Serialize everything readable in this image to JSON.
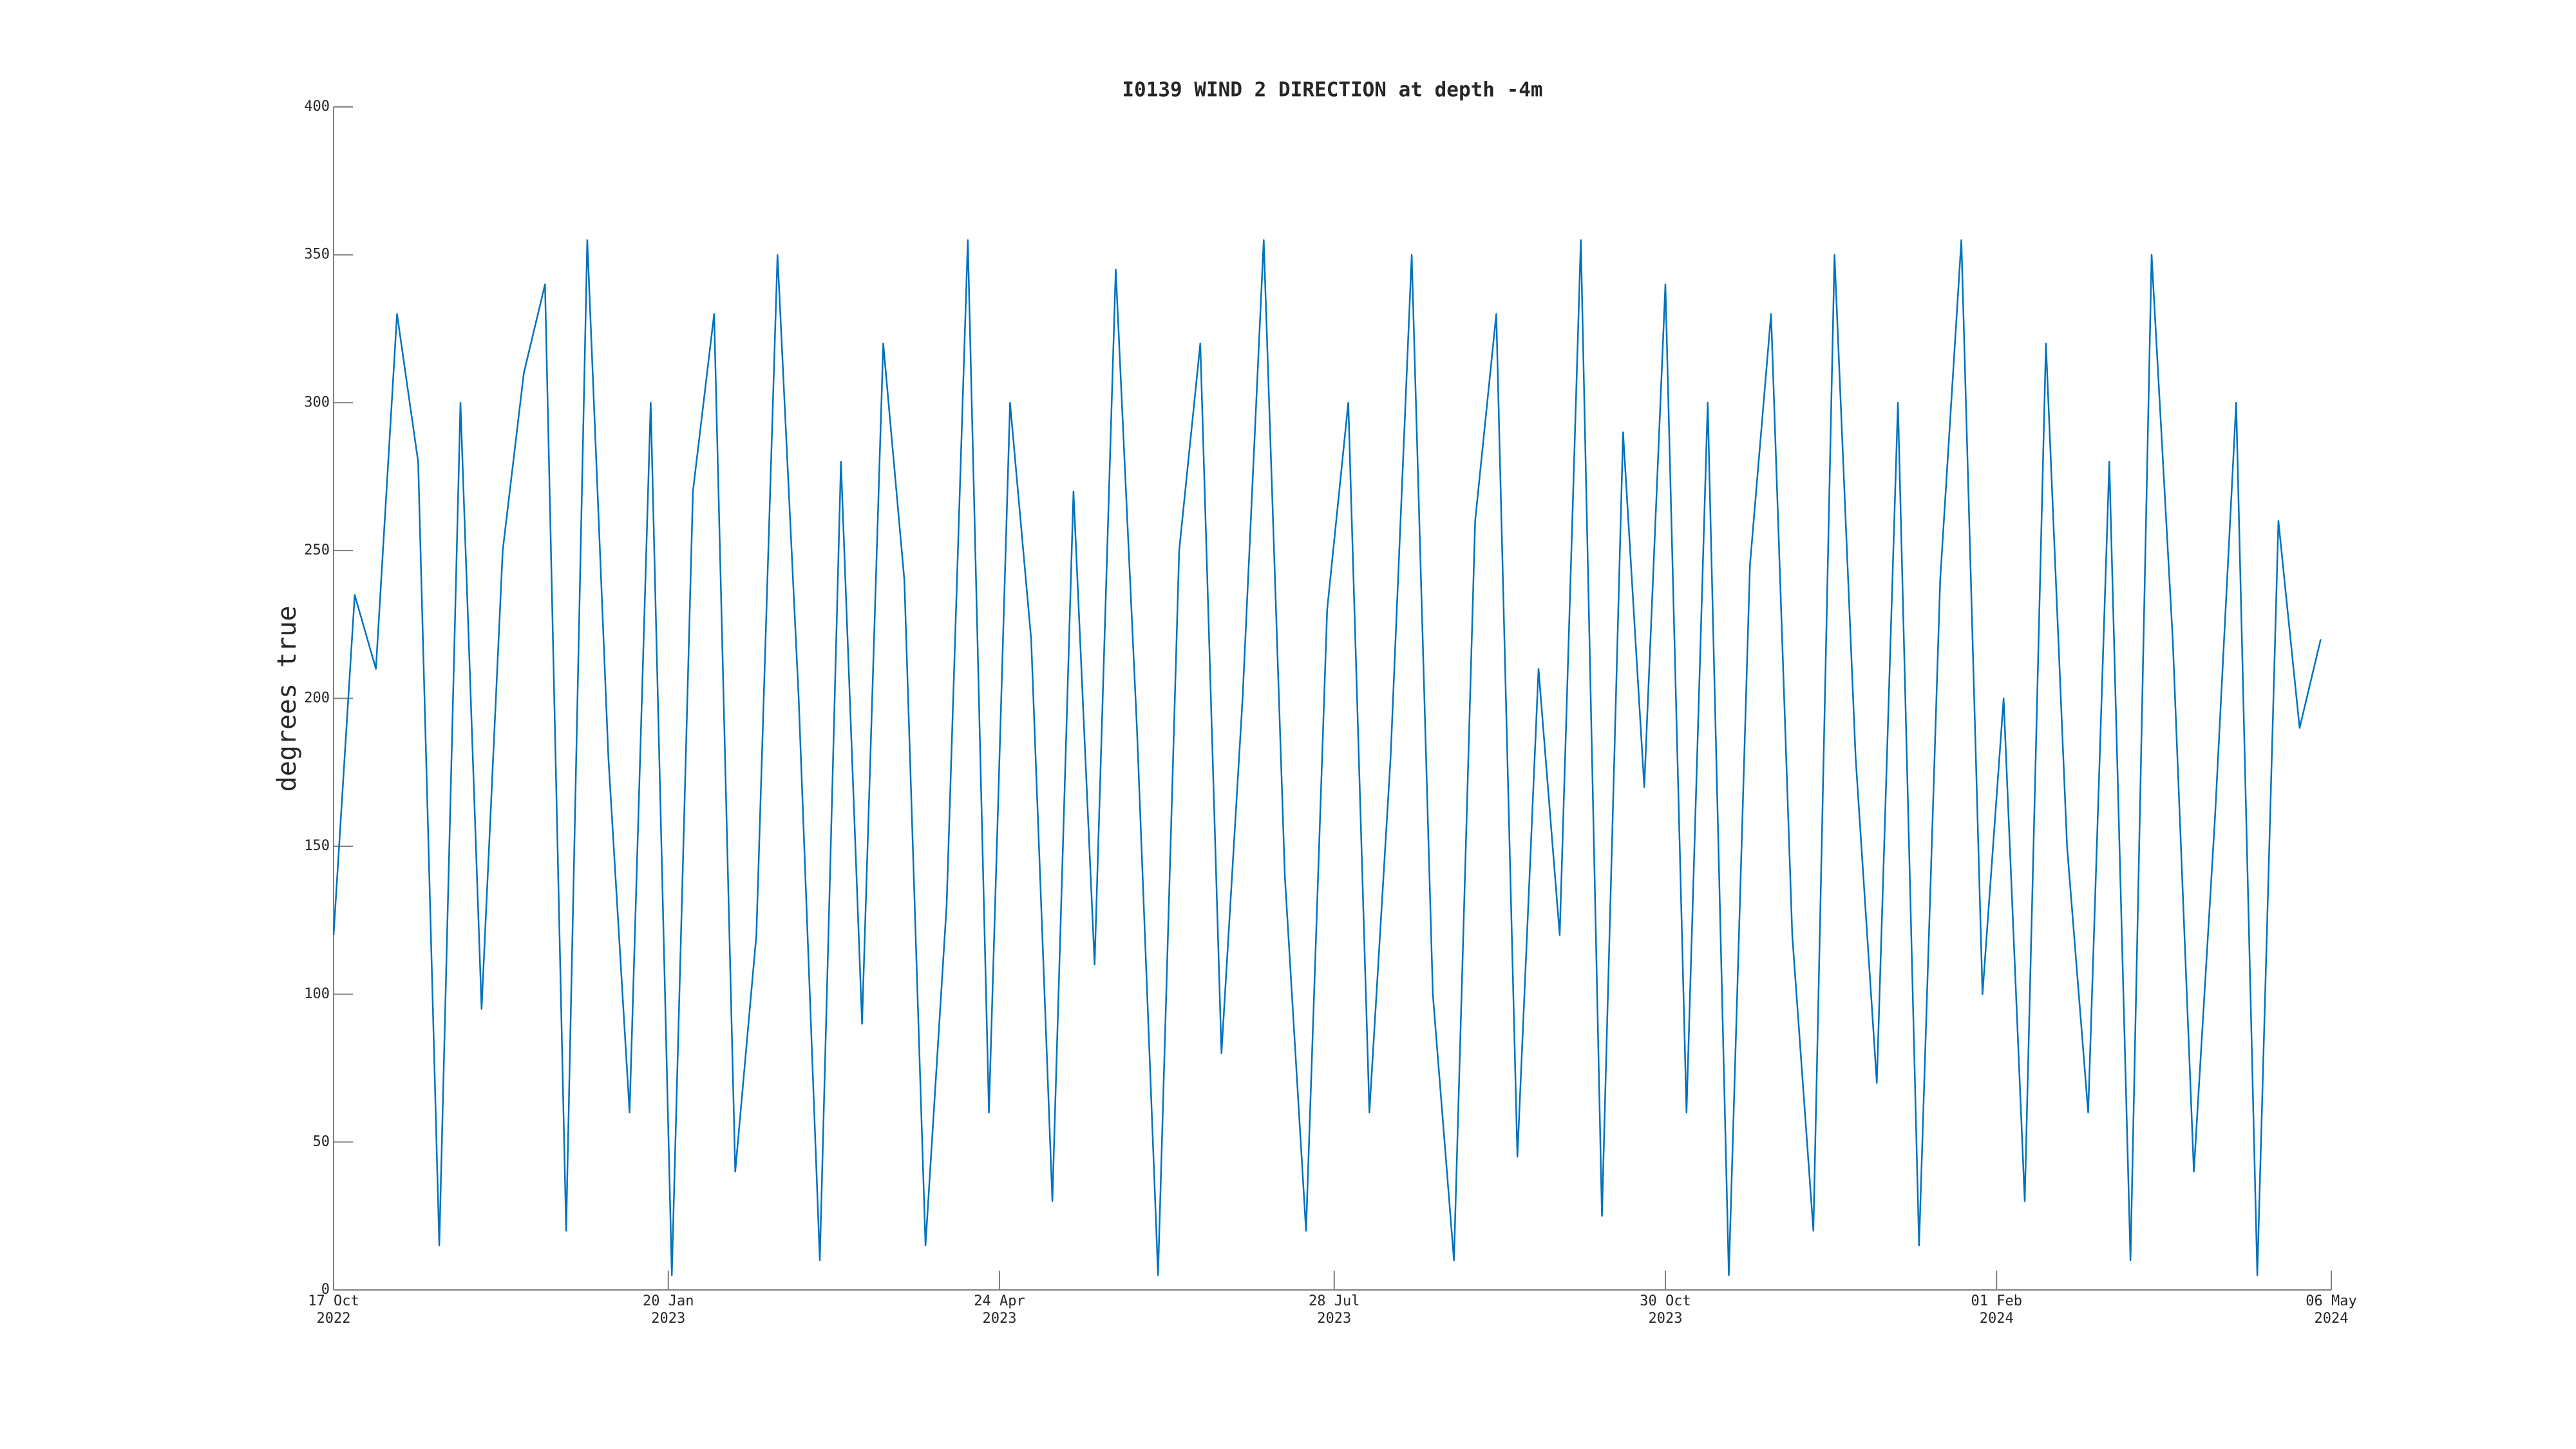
{
  "chart_data": {
    "type": "line",
    "title": "I0139 WIND 2 DIRECTION at depth -4m",
    "y_label": "degrees true",
    "x": [
      "2022-10-17",
      "2022-10-23",
      "2022-10-29",
      "2022-11-04",
      "2022-11-10",
      "2022-11-16",
      "2022-11-22",
      "2022-11-28",
      "2022-12-04",
      "2022-12-10",
      "2022-12-16",
      "2022-12-22",
      "2022-12-28",
      "2023-01-03",
      "2023-01-09",
      "2023-01-15",
      "2023-01-21",
      "2023-01-27",
      "2023-02-02",
      "2023-02-08",
      "2023-02-14",
      "2023-02-20",
      "2023-02-26",
      "2023-03-04",
      "2023-03-10",
      "2023-03-16",
      "2023-03-22",
      "2023-03-28",
      "2023-04-03",
      "2023-04-09",
      "2023-04-15",
      "2023-04-21",
      "2023-04-27",
      "2023-05-03",
      "2023-05-09",
      "2023-05-15",
      "2023-05-21",
      "2023-05-27",
      "2023-06-02",
      "2023-06-08",
      "2023-06-14",
      "2023-06-20",
      "2023-06-26",
      "2023-07-02",
      "2023-07-08",
      "2023-07-14",
      "2023-07-20",
      "2023-07-26",
      "2023-08-01",
      "2023-08-07",
      "2023-08-13",
      "2023-08-19",
      "2023-08-25",
      "2023-08-31",
      "2023-09-06",
      "2023-09-12",
      "2023-09-18",
      "2023-09-24",
      "2023-09-30",
      "2023-10-06",
      "2023-10-12",
      "2023-10-18",
      "2023-10-24",
      "2023-10-30",
      "2023-11-05",
      "2023-11-11",
      "2023-11-17",
      "2023-11-23",
      "2023-11-29",
      "2023-12-05",
      "2023-12-11",
      "2023-12-17",
      "2023-12-23",
      "2023-12-29",
      "2024-01-04",
      "2024-01-10",
      "2024-01-16",
      "2024-01-22",
      "2024-01-28",
      "2024-02-03",
      "2024-02-09",
      "2024-02-15",
      "2024-02-21",
      "2024-02-27",
      "2024-03-04",
      "2024-03-10",
      "2024-03-16",
      "2024-03-22",
      "2024-03-28",
      "2024-04-03",
      "2024-04-09",
      "2024-04-15",
      "2024-04-21",
      "2024-04-27",
      "2024-05-03"
    ],
    "values": [
      120,
      235,
      210,
      330,
      280,
      15,
      300,
      95,
      250,
      310,
      340,
      20,
      355,
      180,
      60,
      300,
      5,
      270,
      330,
      40,
      120,
      350,
      200,
      10,
      280,
      90,
      320,
      240,
      15,
      130,
      355,
      60,
      300,
      220,
      30,
      270,
      110,
      345,
      190,
      5,
      250,
      320,
      80,
      200,
      355,
      140,
      20,
      230,
      300,
      60,
      180,
      350,
      100,
      10,
      260,
      330,
      45,
      210,
      120,
      355,
      25,
      290,
      170,
      340,
      60,
      300,
      5,
      245,
      330,
      120,
      20,
      350,
      180,
      70,
      300,
      15,
      240,
      355,
      100,
      200,
      30,
      320,
      150,
      60,
      280,
      10,
      350,
      220,
      40,
      160,
      300,
      5,
      260,
      190,
      220
    ],
    "color": "#0072bd",
    "xlim": [
      "2022-10-17",
      "2024-05-06"
    ],
    "xticks": [
      {
        "value": "2022-10-17",
        "label": "17 Oct\n2022"
      },
      {
        "value": "2023-01-20",
        "label": "20 Jan\n2023"
      },
      {
        "value": "2023-04-24",
        "label": "24 Apr\n2023"
      },
      {
        "value": "2023-07-28",
        "label": "28 Jul\n2023"
      },
      {
        "value": "2023-10-30",
        "label": "30 Oct\n2023"
      },
      {
        "value": "2024-02-01",
        "label": "01 Feb\n2024"
      },
      {
        "value": "2024-05-06",
        "label": "06 May\n2024"
      }
    ],
    "ylim": [
      0,
      400
    ],
    "yticks": [
      0,
      50,
      100,
      150,
      200,
      250,
      300,
      350,
      400
    ],
    "grid": false
  }
}
